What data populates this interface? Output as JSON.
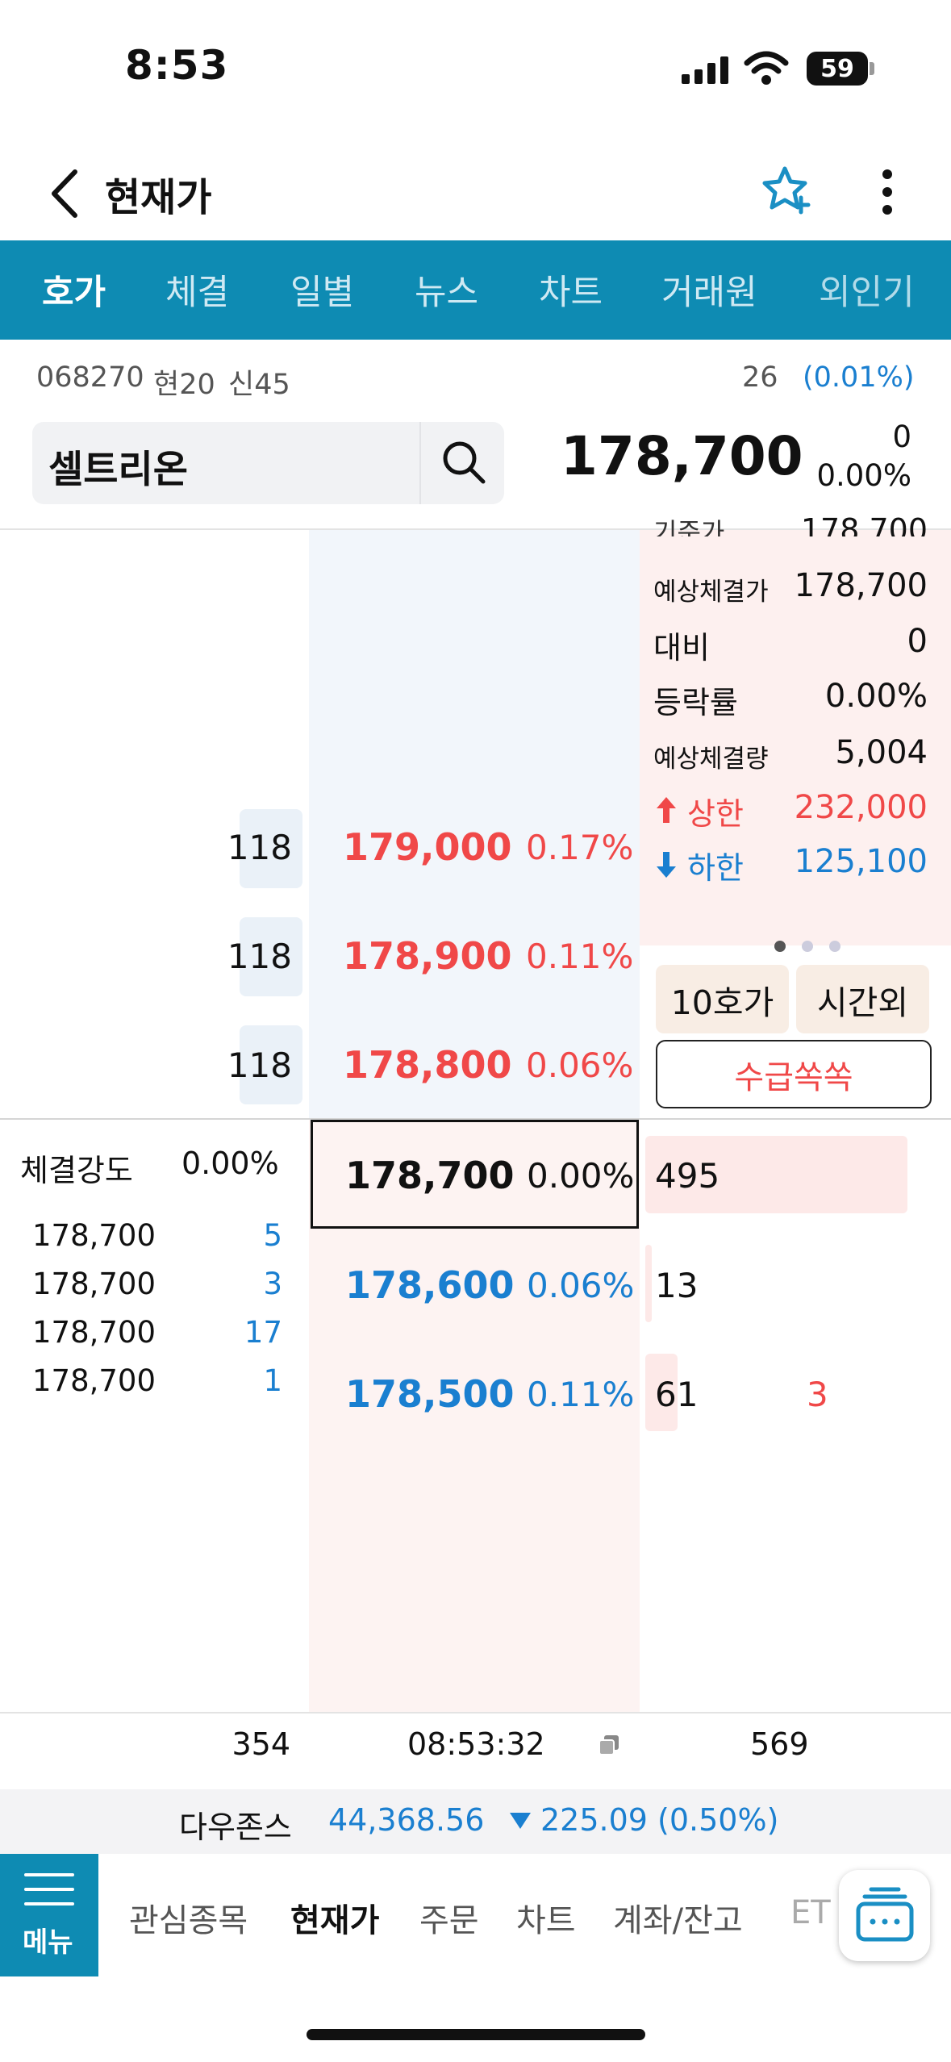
{
  "status": {
    "time": "8:53",
    "battery": "59"
  },
  "header": {
    "title": "현재가"
  },
  "tabs": [
    "호가",
    "체결",
    "일별",
    "뉴스",
    "차트",
    "거래원",
    "외인기"
  ],
  "stock": {
    "code": "068270",
    "tag1": "현20",
    "tag2": "신45",
    "name": "셀트리온",
    "price": "178,700",
    "change": "0",
    "change_pct": "0.00%",
    "right_small_value": "26",
    "right_small_pct": "(0.01%)"
  },
  "info_panel": {
    "partial_label": "기준가",
    "partial_value": "178,700",
    "rows": [
      {
        "label": "예상체결가",
        "value": "178,700"
      },
      {
        "label": "대비",
        "value": "0"
      },
      {
        "label": "등락률",
        "value": "0.00%"
      },
      {
        "label": "예상체결량",
        "value": "5,004"
      }
    ],
    "upper_label": "상한",
    "upper_value": "232,000",
    "lower_label": "하한",
    "lower_value": "125,100",
    "btn_10": "10호가",
    "btn_after": "시간외",
    "btn_supply": "수급쏙쏙"
  },
  "asks": [
    {
      "qty": "118",
      "price": "179,000",
      "pct": "0.17%"
    },
    {
      "qty": "118",
      "price": "178,900",
      "pct": "0.11%"
    },
    {
      "qty": "118",
      "price": "178,800",
      "pct": "0.06%"
    }
  ],
  "current": {
    "price": "178,700",
    "pct": "0.00%",
    "qty": "495"
  },
  "bids": [
    {
      "price": "178,600",
      "pct": "0.06%",
      "qty": "13",
      "extra": ""
    },
    {
      "price": "178,500",
      "pct": "0.11%",
      "qty": "61",
      "extra": "3"
    }
  ],
  "strength": {
    "label": "체결강도",
    "value": "0.00%"
  },
  "trades": [
    {
      "price": "178,700",
      "qty": "5"
    },
    {
      "price": "178,700",
      "qty": "3"
    },
    {
      "price": "178,700",
      "qty": "17"
    },
    {
      "price": "178,700",
      "qty": "1"
    }
  ],
  "footer": {
    "total_ask": "354",
    "time": "08:53:32",
    "total_bid": "569"
  },
  "ticker": {
    "name": "다우존스",
    "value": "44,368.56",
    "change": "225.09 (0.50%)"
  },
  "bottom_nav": {
    "menu": "메뉴",
    "items": [
      "관심종목",
      "현재가",
      "주문",
      "차트",
      "계좌/잔고",
      "ET"
    ]
  }
}
